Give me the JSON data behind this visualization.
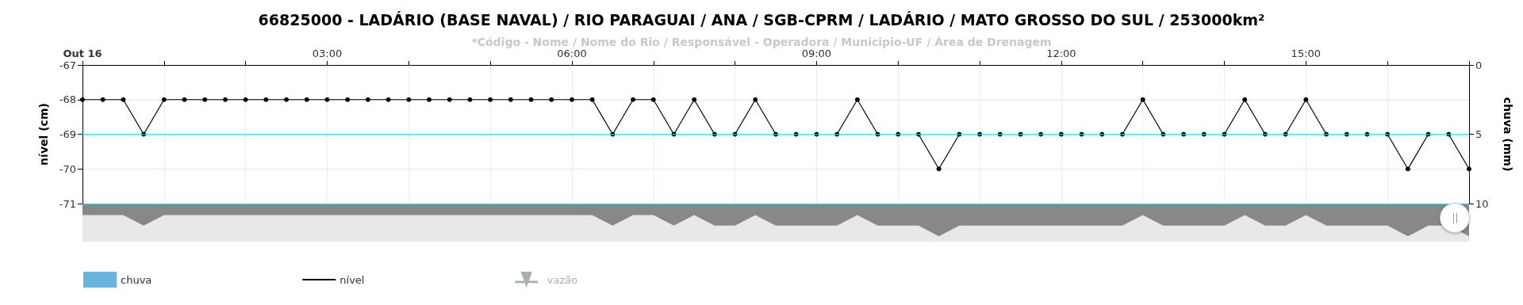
{
  "chart_data": {
    "type": "line",
    "title": "66825000 - LADÁRIO (BASE NAVAL) / RIO PARAGUAI / ANA / SGB-CPRM / LADÁRIO / MATO GROSSO DO SUL / 253000km²",
    "subtitle": "*Código - Nome / Nome do Rio / Responsável - Operadora / Municipio-UF / Área de Drenagem",
    "ylabel": "nível (cm)",
    "y2label": "chuva (mm)",
    "x": [
      0,
      0.25,
      0.5,
      0.75,
      1,
      1.25,
      1.5,
      1.75,
      2,
      2.25,
      2.5,
      2.75,
      3,
      3.25,
      3.5,
      3.75,
      4,
      4.25,
      4.5,
      4.75,
      5,
      5.25,
      5.5,
      5.75,
      6,
      6.25,
      6.5,
      6.75,
      7,
      7.25,
      7.5,
      7.75,
      8,
      8.25,
      8.5,
      8.75,
      9,
      9.25,
      9.5,
      9.75,
      10,
      10.25,
      10.5,
      10.75,
      11,
      11.25,
      11.5,
      11.75,
      12,
      12.25,
      12.5,
      12.75,
      13,
      13.25,
      13.5,
      13.75,
      14,
      14.25,
      14.5,
      14.75,
      15,
      15.25,
      15.5,
      15.75,
      16,
      16.25,
      16.5,
      16.75,
      17
    ],
    "series": [
      {
        "name": "chuva",
        "type": "bar",
        "axis": "y2",
        "color": "#68b6de",
        "values": [
          null,
          null,
          null,
          null,
          null,
          null,
          null,
          null,
          null,
          null,
          null,
          null,
          null,
          null,
          null,
          null,
          null,
          null,
          null,
          null,
          null,
          null,
          null,
          null,
          null,
          null,
          null,
          null,
          null,
          null,
          null,
          null,
          null,
          null,
          null,
          null,
          null,
          null,
          null,
          null,
          null,
          null,
          null,
          null,
          null,
          null,
          null,
          null,
          null,
          null,
          null,
          null,
          null,
          null,
          null,
          null,
          null,
          null,
          null,
          null,
          null,
          null,
          null,
          null,
          null,
          null,
          null,
          null,
          null
        ]
      },
      {
        "name": "nível",
        "color": "#000000",
        "marker": "circle",
        "values": [
          -68,
          -68,
          -68,
          -69,
          -68,
          -68,
          -68,
          -68,
          -68,
          -68,
          -68,
          -68,
          -68,
          -68,
          -68,
          -68,
          -68,
          -68,
          -68,
          -68,
          -68,
          -68,
          -68,
          -68,
          -68,
          -68,
          -69,
          -68,
          -68,
          -69,
          -68,
          -69,
          -69,
          -68,
          -69,
          -69,
          -69,
          -69,
          -68,
          -69,
          -69,
          -69,
          -70,
          -69,
          -69,
          -69,
          -69,
          -69,
          -69,
          -69,
          -69,
          -69,
          -68,
          -69,
          -69,
          -69,
          -69,
          -68,
          -69,
          -69,
          -68,
          -69,
          -69,
          -69,
          -69,
          -70,
          -69,
          -69,
          -70
        ]
      },
      {
        "name": "vazão",
        "color": "#a6b0b0",
        "marker": "triangle",
        "values": [
          null,
          null,
          null,
          null,
          null,
          null,
          null,
          null,
          null,
          null,
          null,
          null,
          null,
          null,
          null,
          null,
          null,
          null,
          null,
          null,
          null,
          null,
          null,
          null,
          null,
          null,
          null,
          null,
          null,
          null,
          null,
          null,
          null,
          null,
          null,
          null,
          null,
          null,
          null,
          null,
          null,
          null,
          null,
          null,
          null,
          null,
          null,
          null,
          null,
          null,
          null,
          null,
          null,
          null,
          null,
          null,
          null,
          null,
          null,
          null,
          null,
          null,
          null,
          null,
          null,
          null,
          null,
          null,
          null
        ]
      }
    ],
    "xlim": [
      0,
      17
    ],
    "xticks": [
      {
        "value": 0,
        "label": "Out 16"
      },
      {
        "value": 1,
        "label": null
      },
      {
        "value": 2,
        "label": null
      },
      {
        "value": 3,
        "label": "03:00"
      },
      {
        "value": 4,
        "label": null
      },
      {
        "value": 5,
        "label": null
      },
      {
        "value": 6,
        "label": "06:00"
      },
      {
        "value": 7,
        "label": null
      },
      {
        "value": 8,
        "label": null
      },
      {
        "value": 9,
        "label": "09:00"
      },
      {
        "value": 10,
        "label": null
      },
      {
        "value": 11,
        "label": null
      },
      {
        "value": 12,
        "label": "12:00"
      },
      {
        "value": 13,
        "label": null
      },
      {
        "value": 14,
        "label": null
      },
      {
        "value": 15,
        "label": "15:00"
      },
      {
        "value": 16,
        "label": null
      },
      {
        "value": 17,
        "label": null
      }
    ],
    "ylim": [
      -71,
      -67
    ],
    "yticks": [
      -71,
      -70,
      -69,
      -68,
      -67
    ],
    "y2lim": [
      10,
      0
    ],
    "y2ticks": [
      0,
      5,
      10
    ],
    "ref_lines": [
      {
        "axis": "y",
        "value": -69,
        "color": "#00e5ee"
      },
      {
        "axis": "y",
        "value": -71,
        "color": "#00e5ee"
      }
    ],
    "grid": true,
    "legend": "bottom left"
  }
}
